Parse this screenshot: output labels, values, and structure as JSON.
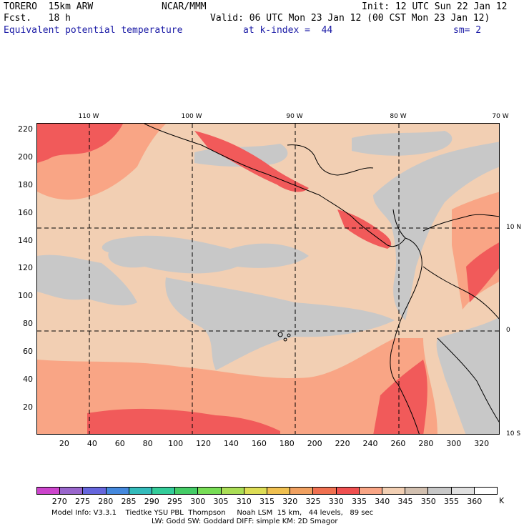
{
  "header": {
    "model": "TORERO  15km ARW",
    "org": "NCAR/MMM",
    "init": "Init: 12 UTC Sun 22 Jan 12",
    "fcst": "Fcst.   18 h",
    "valid": "Valid: 06 UTC Mon 23 Jan 12 (00 CST Mon 23 Jan 12)",
    "field": "Equivalent potential temperature",
    "level": "at k-index =  44",
    "smooth": "sm= 2"
  },
  "map": {
    "lon_labels": [
      "110 W",
      "100 W",
      "90 W",
      "80 W",
      "70 W"
    ],
    "lat_labels": [
      "10 N",
      "0",
      "10 S"
    ],
    "x_ticks": [
      "20",
      "40",
      "60",
      "80",
      "100",
      "120",
      "140",
      "160",
      "180",
      "200",
      "220",
      "240",
      "260",
      "280",
      "300",
      "320"
    ],
    "y_ticks": [
      "20",
      "40",
      "60",
      "80",
      "100",
      "120",
      "140",
      "160",
      "180",
      "200",
      "220"
    ],
    "colors": {
      "background": "#f2cfb3",
      "gray": "#c8c8c8",
      "salmon": "#f9a585",
      "red": "#f15a5a",
      "land_outline": "#000000"
    }
  },
  "colorbar": {
    "labels": [
      "270",
      "275",
      "280",
      "285",
      "290",
      "295",
      "300",
      "305",
      "310",
      "315",
      "320",
      "325",
      "330",
      "335",
      "340",
      "345",
      "350",
      "355",
      "360"
    ],
    "unit": "K",
    "colors": [
      "#cc44cc",
      "#9966cc",
      "#6666dd",
      "#4488dd",
      "#33bbbb",
      "#33cc99",
      "#44cc66",
      "#77dd55",
      "#aadd55",
      "#dddd55",
      "#f0c050",
      "#f0a060",
      "#f07050",
      "#f05050",
      "#f9a585",
      "#f2cfb3",
      "#d2c0b0",
      "#c8c8c8",
      "#e0e0e0",
      "#ffffff"
    ]
  },
  "footer": {
    "line1": "Model Info: V3.3.1    Tiedtke YSU PBL  Thompson     Noah LSM  15 km,   44 levels,   89 sec",
    "line2": "LW: Godd SW: Goddard DIFF: simple KM: 2D Smagor"
  }
}
